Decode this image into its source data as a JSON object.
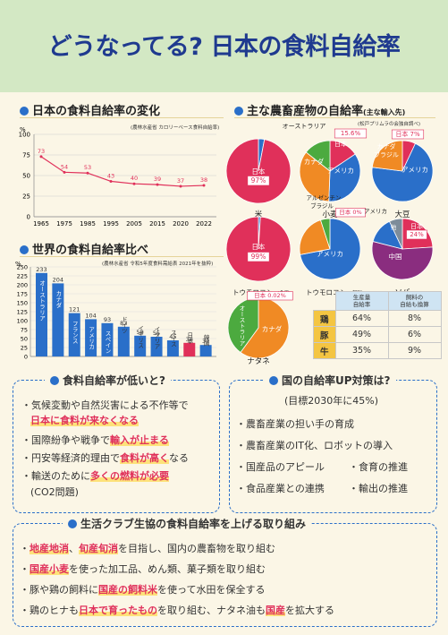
{
  "title": "どうなってる? 日本の食料自給率",
  "sec1": {
    "title": "日本の食料自給率の変化",
    "source": "(農林水産省 カロリーベース食料自給率)"
  },
  "sec2": {
    "title": "世界の食料自給率比べ",
    "source": "(農林水産省 令和5年度食料需給表 2021年を抜粋)"
  },
  "sec3": {
    "title": "主な農畜産物の自給率",
    "title_note": "(主な輸入先)",
    "source": "(松戸プリムラの会独自調べ)"
  },
  "pct_label": "%",
  "chart_data": [
    {
      "type": "line",
      "title": "日本の食料自給率の変化",
      "x": [
        "1965",
        "1975",
        "1985",
        "1995",
        "2005",
        "2015",
        "2020",
        "2022"
      ],
      "values": [
        73,
        54,
        53,
        43,
        40,
        39,
        37,
        38
      ],
      "ylim": [
        0,
        100
      ],
      "yticks": [
        0,
        25,
        50,
        75,
        100
      ],
      "ylabel": "%"
    },
    {
      "type": "bar",
      "title": "世界の食料自給率比べ",
      "categories": [
        "オーストラリア",
        "カナダ",
        "フランス",
        "アメリカ",
        "スペイン",
        "ドイツ",
        "イギリス",
        "イタリア",
        "スイス",
        "日本",
        "韓国"
      ],
      "values": [
        233,
        204,
        121,
        104,
        93,
        83,
        58,
        55,
        45,
        38,
        32
      ],
      "ylim": [
        0,
        250
      ],
      "yticks": [
        0,
        25,
        50,
        75,
        100,
        125,
        150,
        175,
        200,
        225,
        250
      ],
      "ylabel": "%"
    }
  ],
  "pies": {
    "rice": {
      "name": "米",
      "labels": [
        "日本",
        "97%"
      ]
    },
    "wheat": {
      "name": "小麦",
      "labels": [
        "オーストラリア",
        "15.6%",
        "日本",
        "カナダ",
        "アメリカ"
      ]
    },
    "soy": {
      "name": "大豆",
      "labels": [
        "日本 7%",
        "カナダ",
        "ブラジル",
        "アメリカ"
      ]
    },
    "corn_food": {
      "name": "トウモロコシ",
      "note": "(食用)",
      "labels": [
        "日本",
        "99%"
      ]
    },
    "corn_feed": {
      "name": "トウモロコシ",
      "note": "(飼料)",
      "labels": [
        "アルゼンチン",
        "ブラジル",
        "日本 0%",
        "アメリカ"
      ]
    },
    "buckwheat": {
      "name": "ソバ",
      "labels": [
        "アメリカ",
        "他",
        "日本",
        "24%",
        "中国"
      ]
    },
    "rapeseed": {
      "name": "ナタネ",
      "labels": [
        "日本 0.02%",
        "オーストラリア",
        "カナダ"
      ]
    }
  },
  "table": {
    "headers": [
      "生産量\n自給率",
      "飼料の\n自給も換算"
    ],
    "rows": [
      {
        "label": "鶏",
        "a": "64%",
        "b": "8%"
      },
      {
        "label": "豚",
        "a": "49%",
        "b": "6%"
      },
      {
        "label": "牛",
        "a": "35%",
        "b": "9%"
      }
    ]
  },
  "box1": {
    "title": "食料自給率が低いと?",
    "lines": [
      "・気候変動や自然災害による不作等で",
      "日本に食料が来なくなる",
      "・国際紛争や戦争で",
      "輸入が止まる",
      "・円安等経済的理由で",
      "食料が高く",
      "なる",
      "・輸送のために",
      "多くの燃料が必要",
      "(CO2問題)"
    ]
  },
  "box2": {
    "title": "国の自給率UP対策は?",
    "goal": "(目標2030年に45%)",
    "items": [
      "・農畜産業の担い手の育成",
      "・農畜産業のIT化、ロボットの導入",
      "・国産品のアピール",
      "・食育の推進",
      "・食品産業との連携",
      "・輸出の推進"
    ]
  },
  "box3": {
    "title": "生活クラブ生協の食料自給率を上げる取り組み",
    "l1": [
      "・",
      "地産地消",
      "、",
      "旬産旬消",
      "を目指し、国内の農畜物を取り組む"
    ],
    "l2": [
      "・",
      "国産小麦",
      "を使った加工品、めん類、菓子類を取り組む"
    ],
    "l3": [
      "・豚や鶏の飼料に",
      "国産の飼料米",
      "を使って水田を保全する"
    ],
    "l4": [
      "・鶏のヒナも",
      "日本で育ったもの",
      "を取り組む、ナタネ油も",
      "国産",
      "を拡大する"
    ]
  },
  "colors": {
    "accent": "#1f3a8f",
    "japan": "#e0305a",
    "canada": "#f08a24",
    "usa": "#2a6fc9",
    "australia": "#4caa3f",
    "china": "#8a2d7f",
    "other": "#7d8c9a",
    "bar": "#2a6fc9",
    "line": "#e0305a"
  }
}
